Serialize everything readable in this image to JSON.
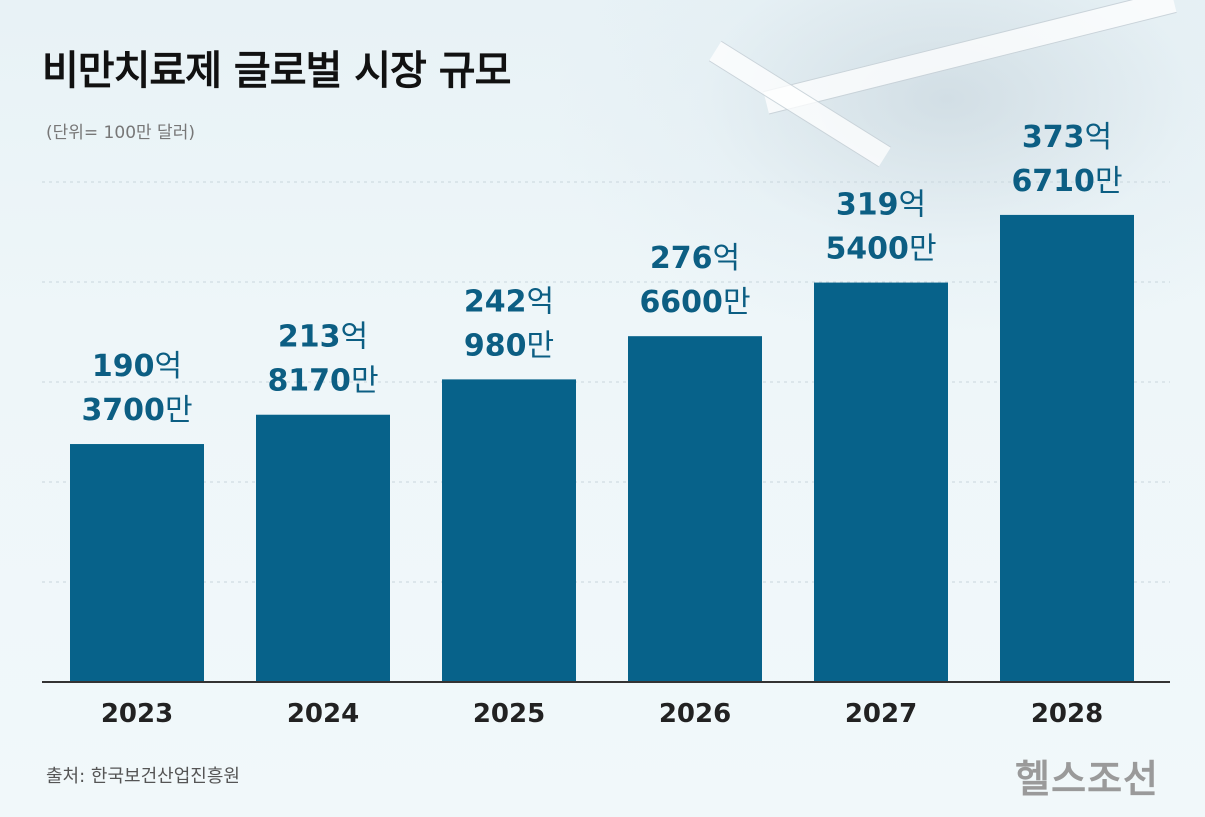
{
  "header": {
    "title": "비만치료제 글로벌 시장 규모",
    "unit": "(단위= 100만 달러)"
  },
  "footer": {
    "source": "출처: 한국보건산업진흥원",
    "logo": "헬스조선"
  },
  "colors": {
    "bar": "#07628a",
    "label": "#0c5e83",
    "grid": "#c9d6dd",
    "axis": "#333333"
  },
  "chart_data": {
    "type": "bar",
    "title": "비만치료제 글로벌 시장 규모",
    "unit": "(단위= 100만 달러)",
    "categories": [
      "2023",
      "2024",
      "2025",
      "2026",
      "2027",
      "2028"
    ],
    "values": [
      19037,
      21381.7,
      24209.8,
      27666,
      31954,
      37367.1
    ],
    "ylim": [
      0,
      40000
    ],
    "grid": true,
    "data_labels": [
      {
        "line1_num": "190",
        "line1_suffix": "억",
        "line2_num": "3700",
        "line2_suffix": "만"
      },
      {
        "line1_num": "213",
        "line1_suffix": "억",
        "line2_num": "8170",
        "line2_suffix": "만"
      },
      {
        "line1_num": "242",
        "line1_suffix": "억",
        "line2_num": "980",
        "line2_suffix": "만"
      },
      {
        "line1_num": "276",
        "line1_suffix": "억",
        "line2_num": "6600",
        "line2_suffix": "만"
      },
      {
        "line1_num": "319",
        "line1_suffix": "억",
        "line2_num": "5400",
        "line2_suffix": "만"
      },
      {
        "line1_num": "373",
        "line1_suffix": "억",
        "line2_num": "6710",
        "line2_suffix": "만"
      }
    ]
  }
}
